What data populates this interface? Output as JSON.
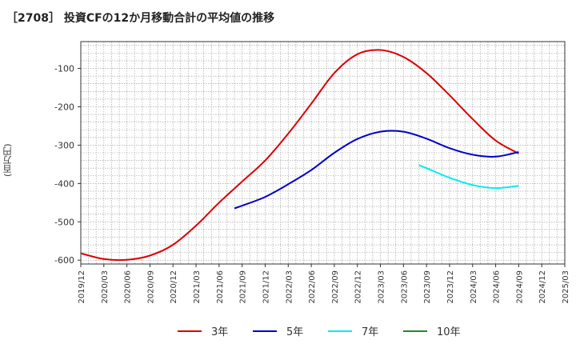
{
  "chart_data": {
    "type": "line",
    "title": "［2708］ 投資CFの12か月移動合計の平均値の推移",
    "ylabel": "(百万円)",
    "xlabel": "",
    "ylim": [
      -610,
      -30
    ],
    "yticks": [
      -100,
      -200,
      -300,
      -400,
      -500,
      -600
    ],
    "xticks": [
      "2019/12",
      "2020/03",
      "2020/06",
      "2020/09",
      "2020/12",
      "2021/03",
      "2021/06",
      "2021/09",
      "2021/12",
      "2022/03",
      "2022/06",
      "2022/09",
      "2022/12",
      "2023/03",
      "2023/06",
      "2023/09",
      "2023/12",
      "2024/03",
      "2024/06",
      "2024/09",
      "2024/12",
      "2025/03"
    ],
    "grid": true,
    "legend_position": "bottom",
    "series": [
      {
        "name": "3年",
        "color": "#dd0000",
        "x": [
          "2019/12",
          "2020/03",
          "2020/06",
          "2020/09",
          "2020/12",
          "2021/03",
          "2021/06",
          "2021/09",
          "2021/12",
          "2022/03",
          "2022/06",
          "2022/09",
          "2022/12",
          "2023/03",
          "2023/06",
          "2023/09",
          "2023/12",
          "2024/03",
          "2024/06",
          "2024/09"
        ],
        "values": [
          -582,
          -597,
          -599,
          -588,
          -560,
          -510,
          -450,
          -395,
          -340,
          -270,
          -192,
          -112,
          -63,
          -52,
          -70,
          -112,
          -170,
          -232,
          -288,
          -322
        ]
      },
      {
        "name": "5年",
        "color": "#0000cc",
        "x": [
          "2021/08",
          "2021/09",
          "2021/12",
          "2022/03",
          "2022/06",
          "2022/09",
          "2022/12",
          "2023/03",
          "2023/06",
          "2023/09",
          "2023/12",
          "2024/03",
          "2024/06",
          "2024/09"
        ],
        "values": [
          -465,
          -458,
          -435,
          -402,
          -365,
          -320,
          -284,
          -265,
          -265,
          -283,
          -308,
          -325,
          -330,
          -318
        ]
      },
      {
        "name": "7年",
        "color": "#00eeee",
        "x": [
          "2023/08",
          "2023/09",
          "2023/12",
          "2024/03",
          "2024/06",
          "2024/09"
        ],
        "values": [
          -352,
          -360,
          -385,
          -404,
          -412,
          -406
        ]
      },
      {
        "name": "10年",
        "color": "#228822",
        "x": [],
        "values": []
      }
    ]
  }
}
